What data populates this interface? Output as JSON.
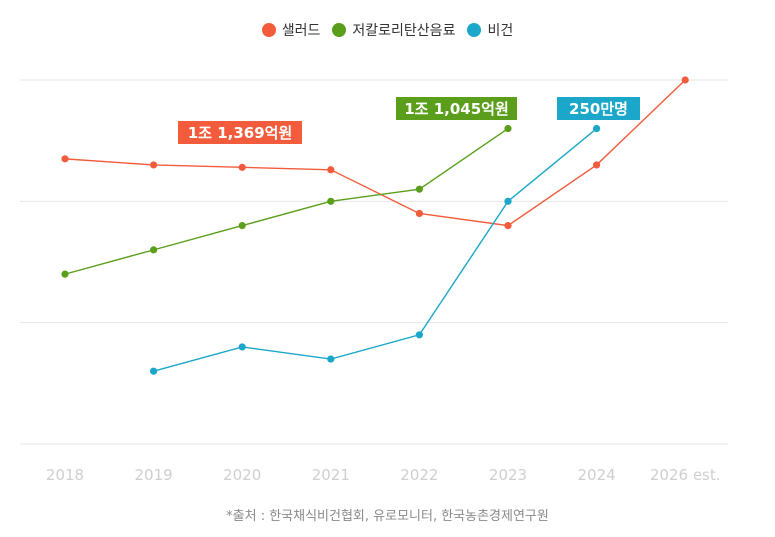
{
  "chart_data": {
    "type": "line",
    "categories": [
      "2018",
      "2019",
      "2020",
      "2021",
      "2022",
      "2023",
      "2024",
      "2026 est."
    ],
    "series": [
      {
        "name": "샐러드",
        "color": "#f25c3c",
        "values": [
          2.35,
          2.3,
          2.28,
          2.26,
          1.9,
          1.8,
          2.3,
          3.0
        ]
      },
      {
        "name": "저칼로리탄산음료",
        "color": "#5a9e1b",
        "values": [
          1.4,
          1.6,
          1.8,
          2.0,
          2.1,
          2.6,
          null,
          null
        ]
      },
      {
        "name": "비건",
        "color": "#1aa7c9",
        "values": [
          null,
          0.6,
          0.8,
          0.7,
          0.9,
          2.0,
          2.6,
          null
        ]
      }
    ],
    "ylim": [
      0.0,
      3.0
    ],
    "grid": true,
    "legend": "top-center",
    "annotations": [
      {
        "series": 0,
        "text": "1조 1,369억원",
        "color": "#f25c3c"
      },
      {
        "series": 1,
        "text": "1조 1,045억원",
        "color": "#5a9e1b"
      },
      {
        "series": 2,
        "text": "250만명",
        "color": "#1aa7c9"
      }
    ]
  },
  "source_text": "*출처 : 한국채식비건협회, 유로모니터, 한국농촌경제연구원"
}
